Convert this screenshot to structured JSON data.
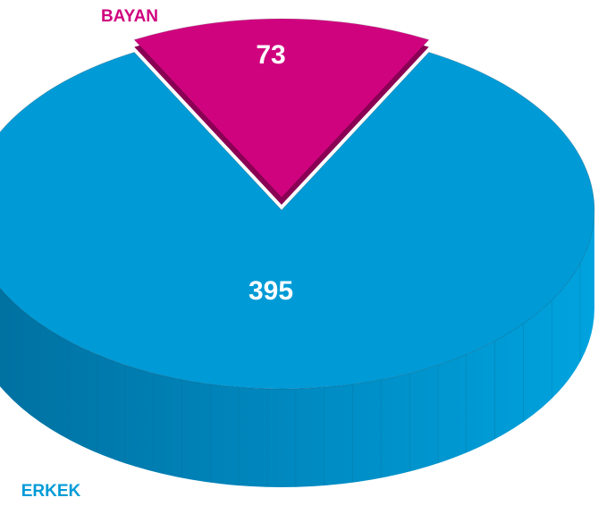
{
  "chart_data": {
    "type": "pie",
    "categories": [
      "BAYAN",
      "ERKEK"
    ],
    "values": [
      73,
      395
    ],
    "colors": [
      "#d0037f",
      "#009bd7"
    ]
  }
}
